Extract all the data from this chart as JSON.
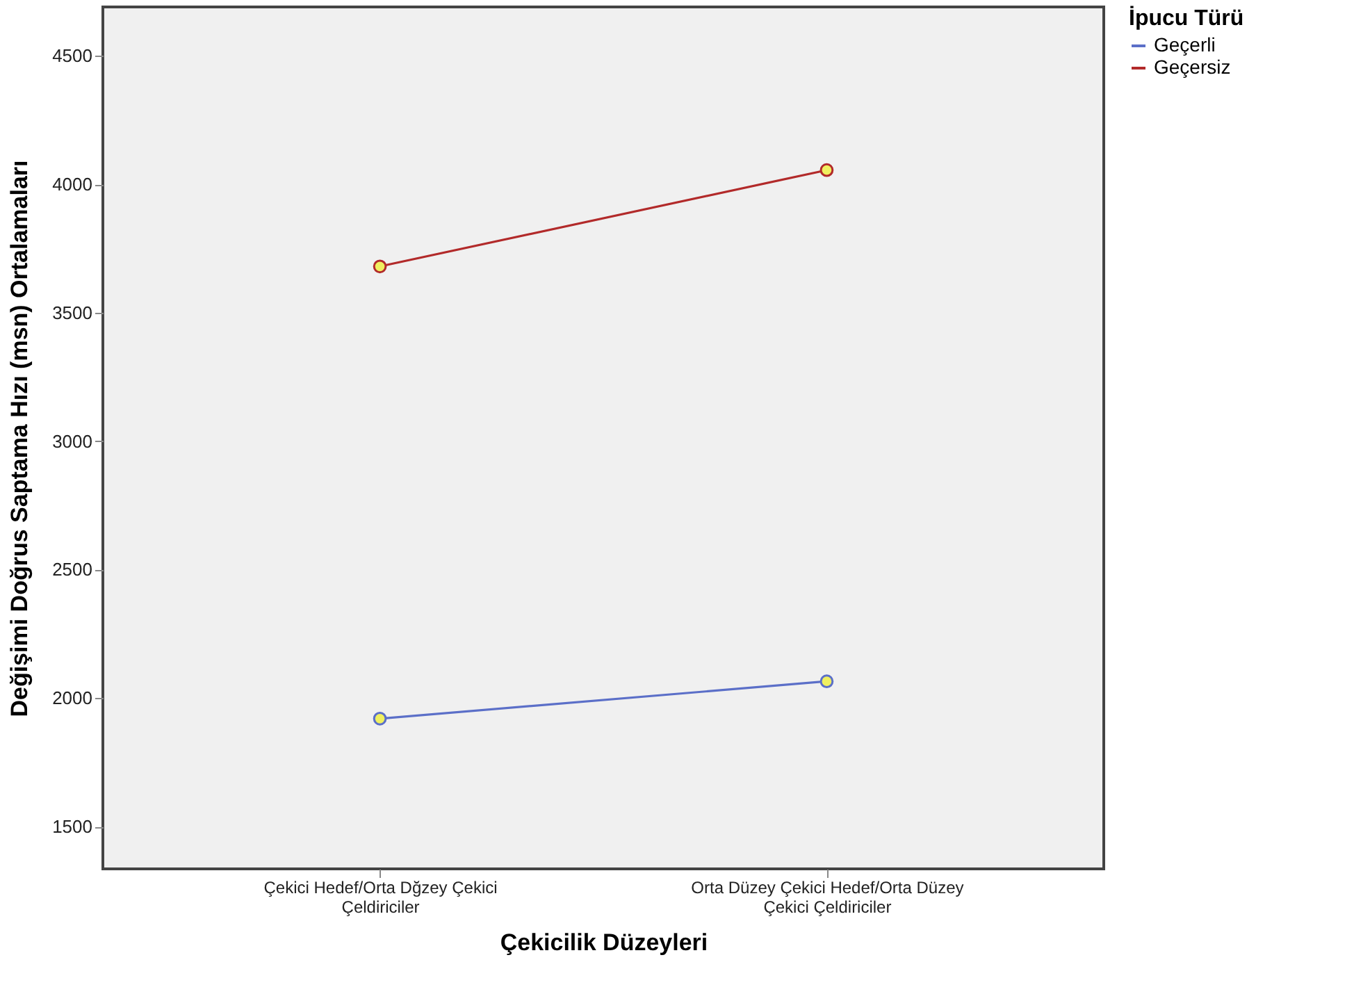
{
  "chart_data": {
    "type": "line",
    "xlabel": "Çekicilik Düzeyleri",
    "ylabel": "Değişimi Doğrus Saptama Hızı (msn) Ortalamaları",
    "legend_title": "İpucu Türü",
    "categories": [
      "Çekici Hedef/Orta Dğzey Çekici Çeldiriciler",
      "Orta Düzey Çekici Hedef/Orta Düzey Çekici Çeldiriciler"
    ],
    "series": [
      {
        "name": "Geçerli",
        "color": "#5b6fc8",
        "values": [
          1920,
          2065
        ]
      },
      {
        "name": "Geçersiz",
        "color": "#b22a2a",
        "values": [
          3680,
          4055
        ]
      }
    ],
    "ylim": [
      1335,
      4690
    ],
    "yticks": [
      1500,
      2000,
      2500,
      3000,
      3500,
      4000,
      4500
    ],
    "grid": false,
    "legend": "right",
    "marker": "circle",
    "line_style": "solid"
  }
}
